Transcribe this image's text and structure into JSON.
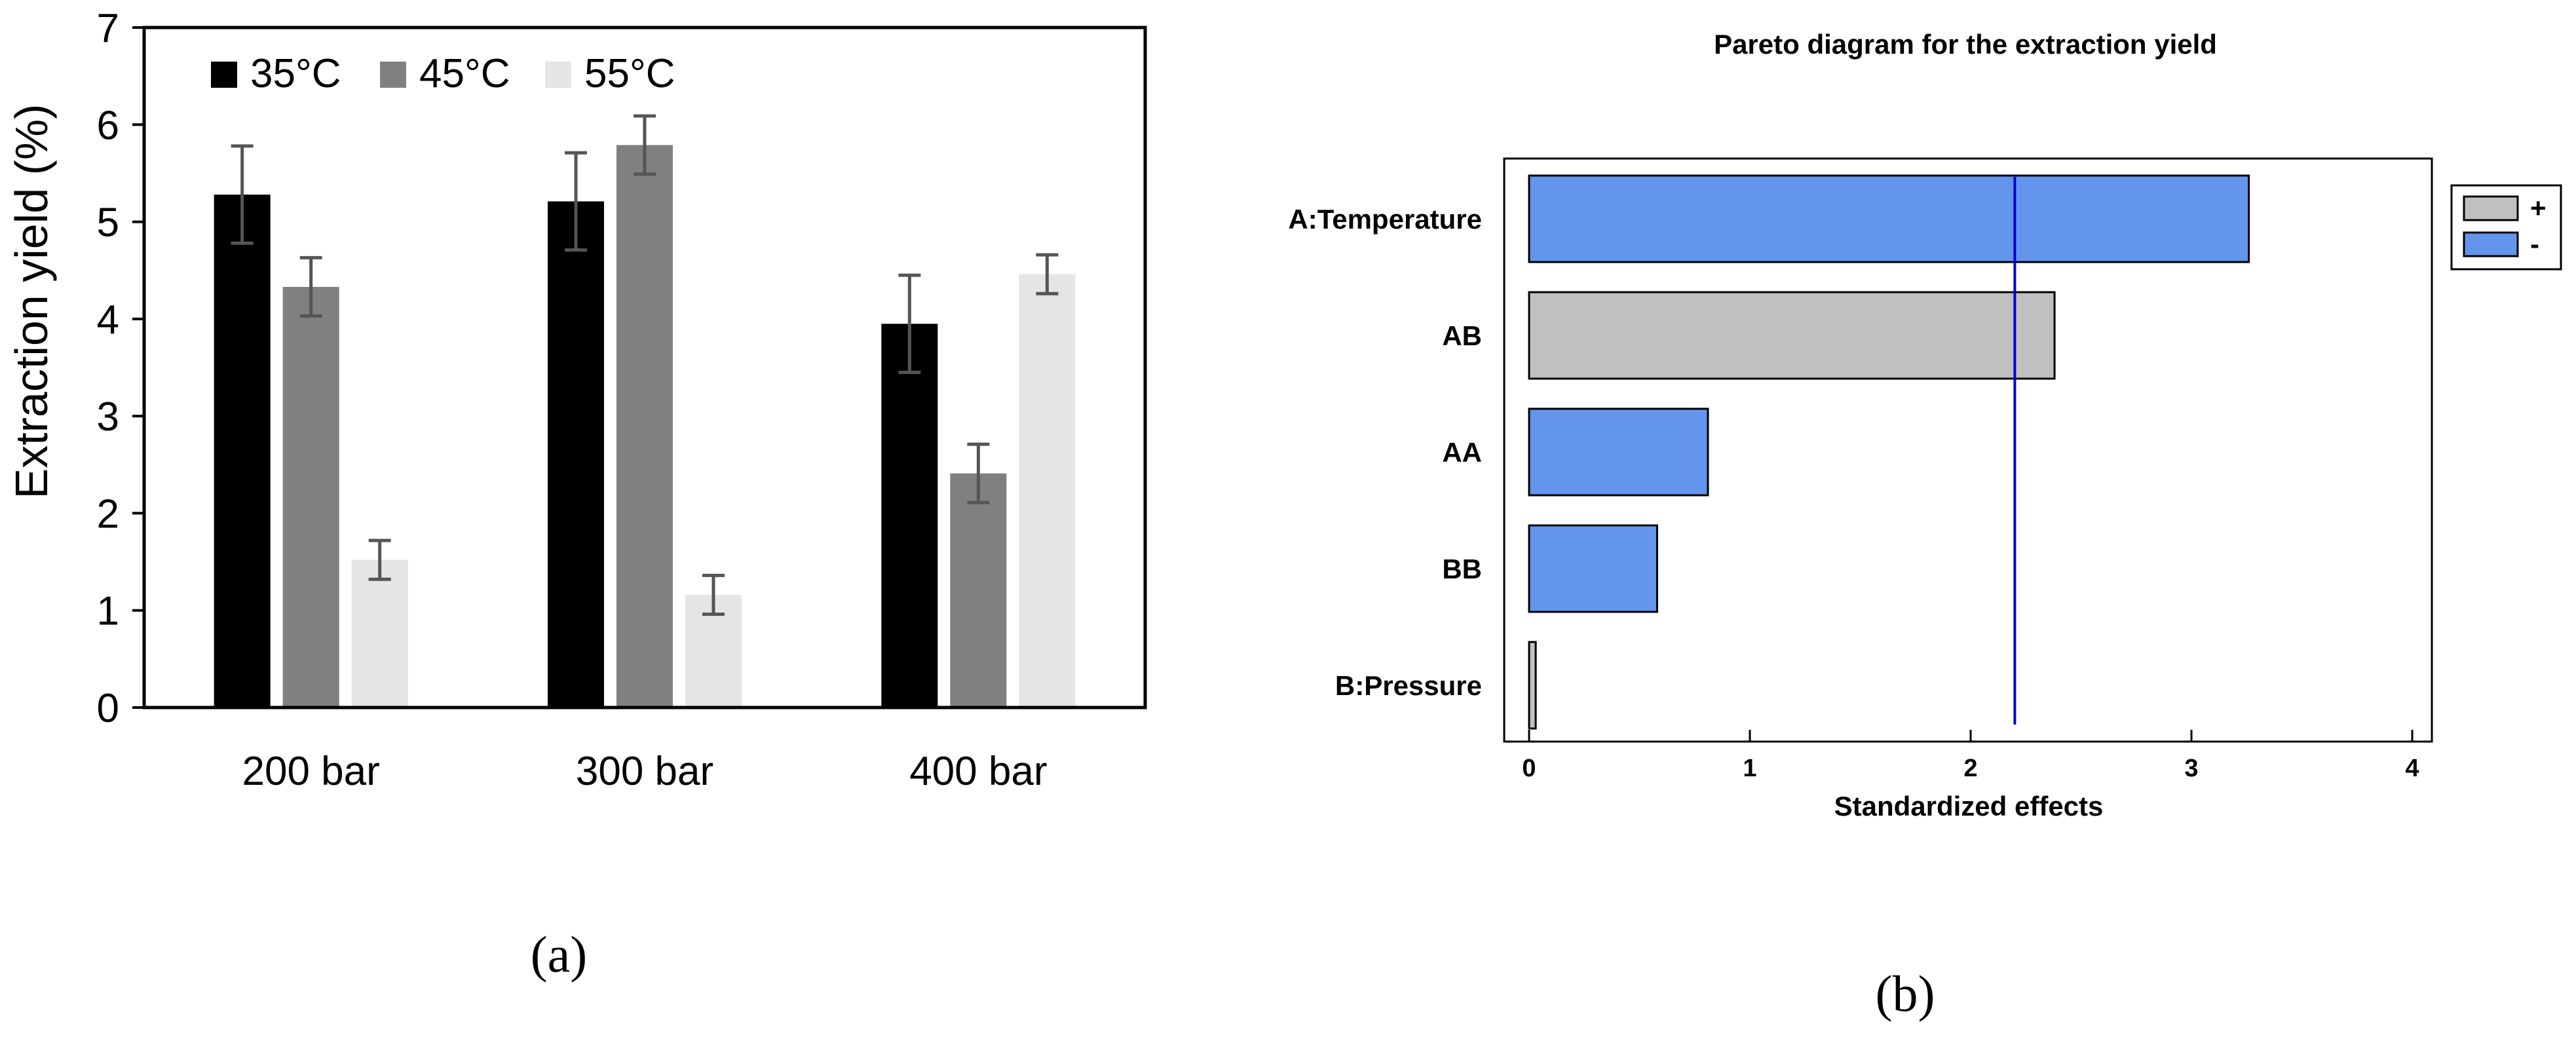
{
  "chart_data": [
    {
      "type": "bar",
      "categories": [
        "200 bar",
        "300 bar",
        "400 bar"
      ],
      "series": [
        {
          "name": "35°C",
          "values": [
            5.28,
            5.21,
            3.95
          ],
          "errors": [
            0.5,
            0.5,
            0.5
          ],
          "color": "#000000"
        },
        {
          "name": "45°C",
          "values": [
            4.33,
            5.79,
            2.41
          ],
          "errors": [
            0.3,
            0.3,
            0.3
          ],
          "color": "#808080"
        },
        {
          "name": "55°C",
          "values": [
            1.52,
            1.16,
            4.46
          ],
          "errors": [
            0.2,
            0.2,
            0.2
          ],
          "color": "#e5e5e5"
        }
      ],
      "title": "",
      "xlabel": "",
      "ylabel": "Extraction yield (%)",
      "ylim": [
        0,
        7
      ],
      "yticks": [
        "0",
        "1",
        "2",
        "3",
        "4",
        "5",
        "6",
        "7"
      ],
      "grid": false,
      "legend_position": "top-left",
      "caption": "(a)"
    },
    {
      "type": "bar",
      "orientation": "horizontal",
      "title": "Pareto diagram for the extraction yield",
      "categories": [
        "A:Temperature",
        "AB",
        "AA",
        "BB",
        "B:Pressure"
      ],
      "values": [
        3.26,
        2.38,
        0.81,
        0.58,
        0.03
      ],
      "signs": [
        "-",
        "+",
        "-",
        "-",
        "+"
      ],
      "xlabel": "Standardized effects",
      "ylabel": "",
      "xlim": [
        0,
        4
      ],
      "xticks": [
        "0",
        "1",
        "2",
        "3",
        "4"
      ],
      "reference_line": 2.2,
      "legend": [
        {
          "label": "+",
          "color": "#c0c0c0"
        },
        {
          "label": "-",
          "color": "#6495ed"
        }
      ],
      "colors": {
        "positive": "#c0c0c0",
        "negative": "#6495ed",
        "reference_line": "#0000cd"
      },
      "grid": false,
      "legend_position": "right",
      "caption": "(b)"
    }
  ]
}
